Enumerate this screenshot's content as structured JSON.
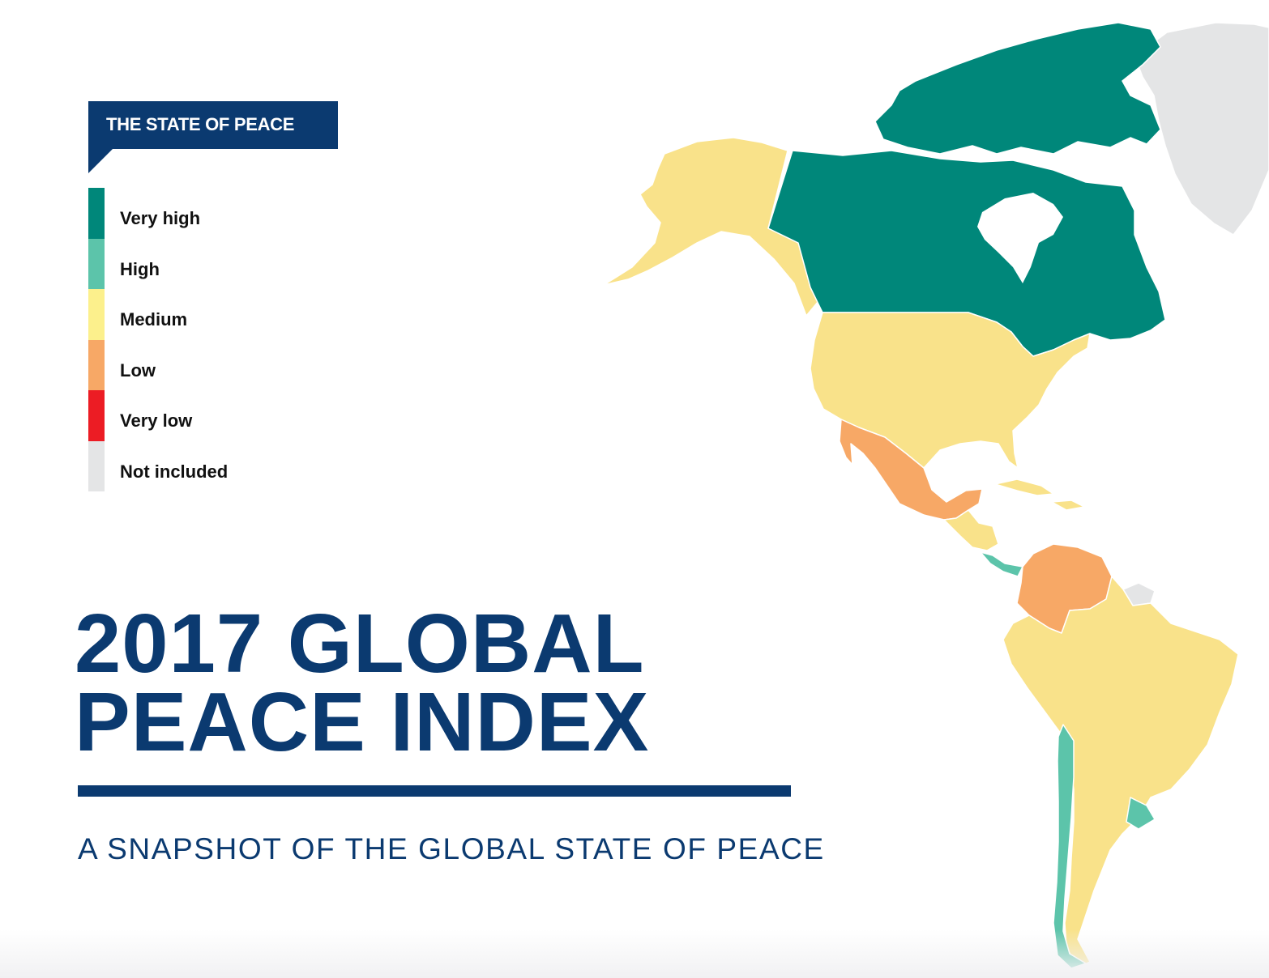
{
  "legend": {
    "title": "THE STATE OF PEACE",
    "items": [
      {
        "label": "Very high",
        "color": "#00877a"
      },
      {
        "label": "High",
        "color": "#5cc4aa"
      },
      {
        "label": "Medium",
        "color": "#fcf08c"
      },
      {
        "label": "Low",
        "color": "#f7a866"
      },
      {
        "label": "Very low",
        "color": "#ec1c24"
      },
      {
        "label": "Not included",
        "color": "#e4e5e6"
      }
    ]
  },
  "title": {
    "line1": "2017 GLOBAL",
    "line2": "PEACE INDEX"
  },
  "subtitle": "A SNAPSHOT OF THE GLOBAL STATE OF PEACE",
  "map": {
    "region": "Americas",
    "level_colors": {
      "very_high": "#00877a",
      "high": "#5cc4aa",
      "medium": "#f9e28a",
      "low": "#f7a866",
      "not_included": "#e4e5e6"
    }
  }
}
